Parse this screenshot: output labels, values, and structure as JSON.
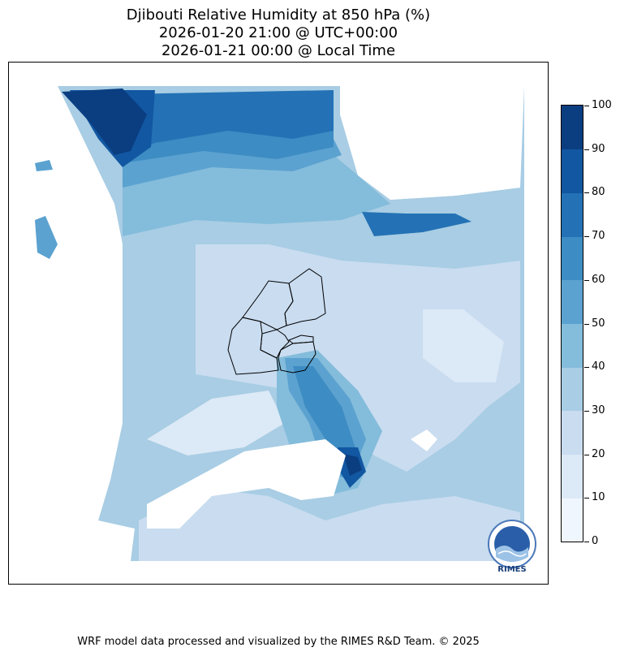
{
  "title": {
    "line1": "Djibouti Relative Humidity at 850 hPa (%)",
    "line2": "2026-01-20 21:00 @ UTC+00:00",
    "line3": "2026-01-21 00:00 @ Local Time"
  },
  "colorbar": {
    "ticks": [
      "0",
      "10",
      "20",
      "30",
      "40",
      "50",
      "60",
      "70",
      "80",
      "90",
      "100"
    ],
    "levels": [
      {
        "range": [
          0,
          10
        ],
        "color": "#f0f6fd"
      },
      {
        "range": [
          10,
          20
        ],
        "color": "#dce9f6"
      },
      {
        "range": [
          20,
          30
        ],
        "color": "#c9dcf0"
      },
      {
        "range": [
          30,
          40
        ],
        "color": "#a8cde4"
      },
      {
        "range": [
          40,
          50
        ],
        "color": "#84bcdb"
      },
      {
        "range": [
          50,
          60
        ],
        "color": "#5ba2d0"
      },
      {
        "range": [
          60,
          70
        ],
        "color": "#3d8cc3"
      },
      {
        "range": [
          70,
          80
        ],
        "color": "#2472b5"
      },
      {
        "range": [
          80,
          90
        ],
        "color": "#1257a2"
      },
      {
        "range": [
          90,
          100
        ],
        "color": "#0a3e80"
      }
    ]
  },
  "logo": {
    "text": "RIMES"
  },
  "footer": "WRF model data processed and visualized by the RIMES R&D Team. © 2025"
}
